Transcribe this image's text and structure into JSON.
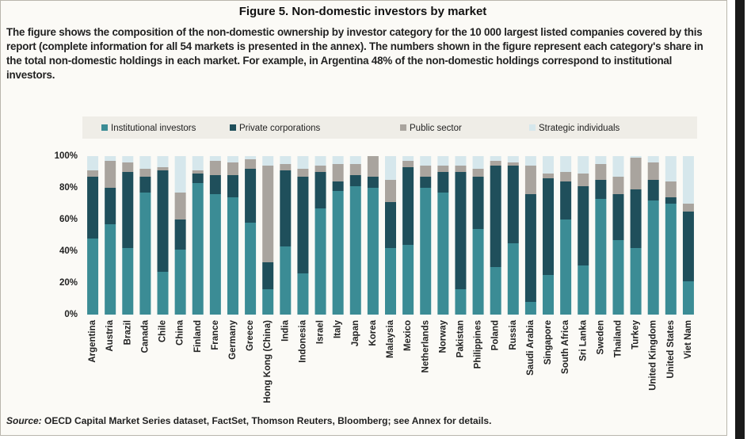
{
  "chart_data": {
    "type": "stacked_bar",
    "title": "Figure 5. Non-domestic investors by market",
    "description": "The figure shows the composition of the non-domestic ownership by investor category for the 10 000 largest listed companies covered by this report (complete information for all 54 markets is presented in the annex). The numbers shown in the figure represent each category's share in the total non-domestic holdings in each market. For example, in Argentina 48% of the non-domestic holdings correspond to institutional investors.",
    "source_label": "Source:",
    "source_text": "OECD Capital Market Series dataset, FactSet, Thomson Reuters, Bloomberg; see Annex for details.",
    "categories": [
      "Argentina",
      "Austria",
      "Brazil",
      "Canada",
      "Chile",
      "China",
      "Finland",
      "France",
      "Germany",
      "Greece",
      "Hong Kong (China)",
      "India",
      "Indonesia",
      "Israel",
      "Italy",
      "Japan",
      "Korea",
      "Malaysia",
      "Mexico",
      "Netherlands",
      "Norway",
      "Pakistan",
      "Philippines",
      "Poland",
      "Russia",
      "Saudi Arabia",
      "Singapore",
      "South Africa",
      "Sri Lanka",
      "Sweden",
      "Thailand",
      "Turkey",
      "United Kingdom",
      "United States",
      "Viet Nam"
    ],
    "series": [
      {
        "name": "Institutional investors",
        "color": "#3b8c95",
        "values": [
          48,
          57,
          42,
          77,
          27,
          41,
          83,
          76,
          74,
          58,
          16,
          43,
          26,
          67,
          78,
          81,
          80,
          42,
          44,
          80,
          77,
          16,
          54,
          30,
          45,
          8,
          25,
          60,
          31,
          73,
          47,
          42,
          72,
          70,
          21
        ]
      },
      {
        "name": "Private corporations",
        "color": "#1f4f5b",
        "values": [
          39,
          23,
          48,
          10,
          64,
          19,
          6,
          12,
          14,
          34,
          17,
          48,
          61,
          23,
          6,
          7,
          7,
          29,
          49,
          7,
          13,
          74,
          33,
          64,
          49,
          68,
          61,
          24,
          50,
          12,
          29,
          37,
          13,
          4,
          44
        ]
      },
      {
        "name": "Public sector",
        "color": "#a9a49e",
        "values": [
          4,
          17,
          6,
          5,
          2,
          17,
          2,
          9,
          8,
          6,
          61,
          4,
          5,
          4,
          11,
          7,
          13,
          14,
          4,
          7,
          4,
          4,
          5,
          3,
          2,
          18,
          3,
          6,
          8,
          10,
          11,
          20,
          11,
          10,
          5
        ]
      },
      {
        "name": "Strategic individuals",
        "color": "#d6e7ec",
        "values": [
          9,
          3,
          4,
          8,
          7,
          23,
          9,
          3,
          4,
          2,
          6,
          5,
          8,
          6,
          5,
          5,
          0,
          15,
          3,
          6,
          6,
          6,
          8,
          3,
          4,
          6,
          11,
          10,
          11,
          5,
          13,
          1,
          4,
          16,
          30
        ]
      }
    ],
    "ylim": [
      0,
      100
    ],
    "yticks": [
      {
        "value": 0,
        "label": "0%"
      },
      {
        "value": 20,
        "label": "20%"
      },
      {
        "value": 40,
        "label": "40%"
      },
      {
        "value": 60,
        "label": "60%"
      },
      {
        "value": 80,
        "label": "80%"
      },
      {
        "value": 100,
        "label": "100%"
      }
    ],
    "legend": "top"
  }
}
